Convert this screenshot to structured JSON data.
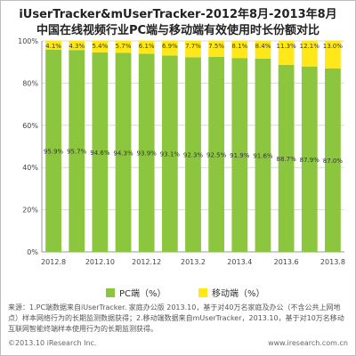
{
  "title_line1": "iUserTracker&mUserTracker-2012年8月-2013年8月",
  "title_line2": "中国在线视频行业PC端与移动端有效使用时长份额对比",
  "chart_data": {
    "type": "bar",
    "stacked": true,
    "categories": [
      "2012.8",
      "2012.9",
      "2012.10",
      "2012.11",
      "2012.12",
      "2013.1",
      "2013.2",
      "2013.3",
      "2013.4",
      "2013.5",
      "2013.6",
      "2013.7",
      "2013.8"
    ],
    "x_tick_labels": [
      "2012.8",
      "",
      "2012.10",
      "",
      "2012.12",
      "",
      "2013.2",
      "",
      "2013.4",
      "",
      "2013.6",
      "",
      "2013.8"
    ],
    "y_ticks": [
      "0%",
      "20%",
      "40%",
      "60%",
      "80%",
      "100%"
    ],
    "ylim": [
      0,
      100
    ],
    "series": [
      {
        "name": "PC端（%）",
        "color": "#8cc63f",
        "values": [
          95.9,
          95.7,
          94.6,
          94.3,
          93.9,
          93.1,
          92.3,
          92.5,
          91.9,
          91.6,
          88.7,
          87.9,
          87.0
        ],
        "labels": [
          "95.9%",
          "95.7%",
          "94.6%",
          "94.3%",
          "93.9%",
          "93.1%",
          "92.3%",
          "92.5%",
          "91.9%",
          "91.6%",
          "88.7%",
          "87.9%",
          "87.0%"
        ]
      },
      {
        "name": "移动端（%）",
        "color": "#ffe81a",
        "values": [
          4.1,
          4.3,
          5.4,
          5.7,
          6.1,
          6.9,
          7.7,
          7.5,
          8.1,
          8.4,
          11.3,
          12.1,
          13.0
        ],
        "labels": [
          "4.1%",
          "4.3%",
          "5.4%",
          "5.7%",
          "6.1%",
          "6.9%",
          "7.7%",
          "7.5%",
          "8.1%",
          "8.4%",
          "11.3%",
          "12.1%",
          "13.0%"
        ]
      }
    ],
    "grid": true,
    "legend_position": "bottom"
  },
  "note": "来源：1.PC端数据来自iUserTracker. 家庭办公版 2013.10，基于对40万名家庭及办公（不含公共上网地点）样本网络行为的长期监测数据获得；2.移动端数据来自mUserTracker，2013.10，基于对10万名移动互联网智能终端样本使用行为的长期监测获得。",
  "footer_left": "©2013.10 iResearch Inc.",
  "footer_right": "www.iresearch.com.cn"
}
